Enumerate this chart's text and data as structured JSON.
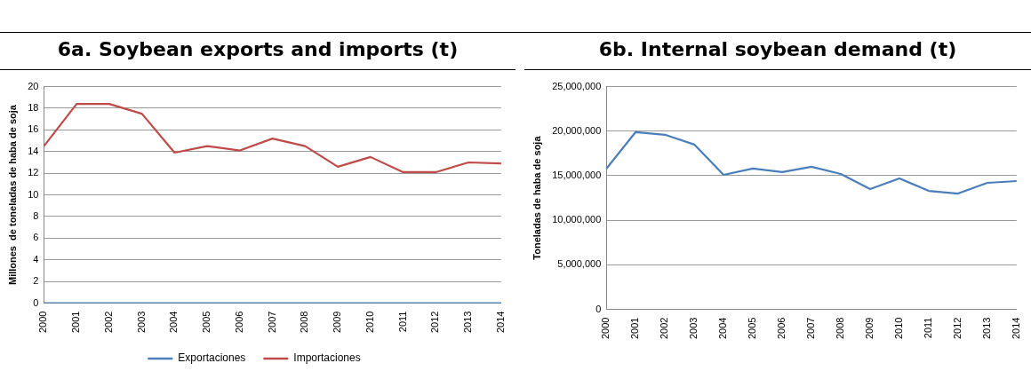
{
  "chart_data": [
    {
      "type": "line",
      "title": "6a. Soybean exports and imports (t)",
      "ylabel": "Millones  de toneladas de haba de soja",
      "categories": [
        "2000",
        "2001",
        "2002",
        "2003",
        "2004",
        "2005",
        "2006",
        "2007",
        "2008",
        "2009",
        "2010",
        "2011",
        "2012",
        "2013",
        "2014"
      ],
      "series": [
        {
          "name": "Exportaciones",
          "color": "#4a7ebb",
          "values": [
            0,
            0,
            0,
            0,
            0,
            0,
            0,
            0,
            0,
            0,
            0,
            0,
            0,
            0,
            0
          ]
        },
        {
          "name": "Importaciones",
          "color": "#be4b48",
          "values": [
            14.5,
            18.4,
            18.4,
            17.5,
            13.9,
            14.5,
            14.1,
            15.2,
            14.5,
            12.6,
            13.5,
            12.1,
            12.1,
            13.0,
            12.9
          ]
        }
      ],
      "ylim": [
        0,
        20
      ],
      "yticks": [
        0,
        2,
        4,
        6,
        8,
        10,
        12,
        14,
        16,
        18,
        20
      ],
      "grid": "y",
      "legend": "bottom",
      "marker": "none"
    },
    {
      "type": "line",
      "title": "6b. Internal soybean demand (t)",
      "ylabel": "Toneladas de haba de soja",
      "categories": [
        "2000",
        "2001",
        "2002",
        "2003",
        "2004",
        "2005",
        "2006",
        "2007",
        "2008",
        "2009",
        "2010",
        "2011",
        "2012",
        "2013",
        "2014"
      ],
      "series": [
        {
          "color": "#4a7ebb",
          "values": [
            15800000,
            19900000,
            19600000,
            18500000,
            15100000,
            15800000,
            15400000,
            16000000,
            15200000,
            13500000,
            14700000,
            13300000,
            13000000,
            14200000,
            14400000
          ]
        }
      ],
      "ylim": [
        0,
        25000000
      ],
      "yticks": [
        {
          "value": 0,
          "label": "0"
        },
        {
          "value": 5000000,
          "label": "5,000,000"
        },
        {
          "value": 10000000,
          "label": "10,000,000"
        },
        {
          "value": 15000000,
          "label": "15,000,000"
        },
        {
          "value": 20000000,
          "label": "20,000,000"
        },
        {
          "value": 25000000,
          "label": "25,000,000"
        }
      ],
      "grid": "y",
      "marker": "none"
    }
  ]
}
